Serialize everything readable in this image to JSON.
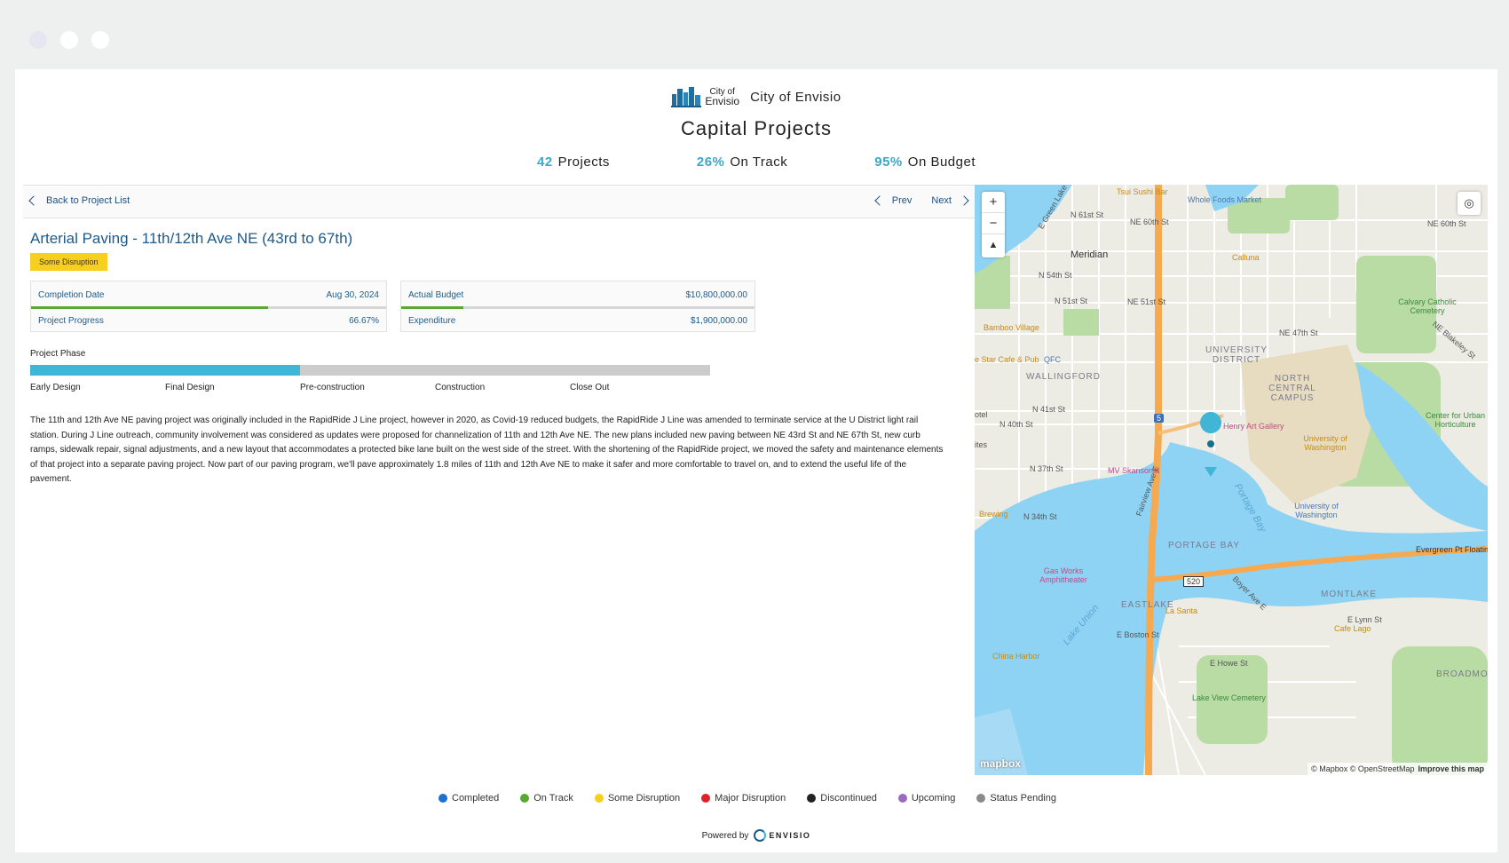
{
  "header": {
    "logo_line1": "City of",
    "logo_line2": "Envisio",
    "org_name": "City of Envisio",
    "title": "Capital Projects"
  },
  "stats": [
    {
      "value": "42",
      "label": "Projects"
    },
    {
      "value": "26%",
      "label": "On Track"
    },
    {
      "value": "95%",
      "label": "On Budget"
    }
  ],
  "nav": {
    "back_label": "Back to Project List",
    "prev_label": "Prev",
    "next_label": "Next"
  },
  "project": {
    "title": "Arterial Paving - 11th/12th Ave NE (43rd to 67th)",
    "status": "Some Disruption",
    "status_color": "#f7cf1f",
    "completion_date_label": "Completion Date",
    "completion_date": "Aug 30, 2024",
    "progress_label": "Project Progress",
    "progress": "66.67%",
    "progress_fraction": 0.6667,
    "actual_budget_label": "Actual Budget",
    "actual_budget": "$10,800,000.00",
    "expenditure_label": "Expenditure",
    "expenditure": "$1,900,000.00",
    "expenditure_fraction": 0.176,
    "phase_label": "Project Phase",
    "phases": [
      {
        "label": "Early Design",
        "done": true
      },
      {
        "label": "Final Design",
        "done": true
      },
      {
        "label": "Pre-construction",
        "done": false
      },
      {
        "label": "Construction",
        "done": false
      },
      {
        "label": "Close Out",
        "done": false
      }
    ],
    "description": "The 11th and 12th Ave NE paving project was originally included in the RapidRide J Line project, however in 2020, as Covid-19 reduced budgets, the RapidRide J Line was amended to terminate service at the U District light rail station. During J Line outreach, community involvement was considered as updates were proposed for channelization of 11th and 12th Ave NE. The new plans included new paving between NE 43rd St and NE 67th St, new curb ramps, sidewalk repair, signal adjustments, and a new layout that accommodates a protected bike lane built on the west side of the street. With the shortening of the RapidRide project, we moved the safety and maintenance elements of that project into a separate paving project. Now part of our paving program, we'll pave approximately 1.8 miles of 11th and 12th Ave NE to make it safer and more comfortable to travel on, and to extend the useful life of the pavement."
  },
  "map": {
    "zoom_in": "+",
    "zoom_out": "−",
    "compass": "▲",
    "locate_icon": "◎",
    "logo": "mapbox",
    "attribution": "© Mapbox © OpenStreetMap",
    "improve": "Improve this map",
    "labels": {
      "meridian": "Meridian",
      "university_district": "UNIVERSITY DISTRICT",
      "wallingford": "WALLINGFORD",
      "north_central_campus": "NORTH CENTRAL CAMPUS",
      "portage_bay": "PORTAGE BAY",
      "eastlake": "EASTLAKE",
      "montlake": "MONTLAKE",
      "broadmoor": "BROADMOOR",
      "tsui_sushi": "Tsui Sushi Bar",
      "whole_foods": "Whole Foods Market",
      "calluna": "Calluna",
      "calvary": "Calvary Catholic Cemetery",
      "bamboo_village": "Bamboo Village",
      "star_cafe": "e Star Cafe & Pub",
      "qfc": "QFC",
      "henry_art": "Henry Art Gallery",
      "uw": "University of Washington",
      "uw2": "University of Washington",
      "center_hort": "Center for Urban Horticulture",
      "mv_skansonia": "MV Skansonia",
      "gas_works": "Gas Works Amphitheater",
      "la_santa": "La Santa",
      "cafe_lago": "Cafe Lago",
      "china_harbor": "China Harbor",
      "lake_view": "Lake View Cemetery",
      "lake_union": "Lake Union",
      "portage_bay_water": "Portage Bay",
      "brewing": "Brewing",
      "otel": "otel",
      "ites": "ites",
      "n_61st": "N 61st St",
      "ne_60th": "NE 60th St",
      "ne_60th_e": "NE 60th St",
      "n_54th": "N 54th St",
      "n_51st": "N 51st St",
      "ne_51st": "NE 51st St",
      "ne_47th": "NE 47th St",
      "n_41st": "N 41st St",
      "n_40th": "N 40th St",
      "n_37th": "N 37th St",
      "n_34th": "N 34th St",
      "e_boston": "E Boston St",
      "e_howe": "E Howe St",
      "e_lynn": "E Lynn St",
      "evergreen": "Evergreen Pt Floatin",
      "boyer": "Boyer Ave E",
      "fairview": "Fairview Ave E",
      "ne_blakeley": "NE Blakeley St",
      "e_green_lake": "E Green Lake",
      "i5": "5",
      "sr520": "520"
    }
  },
  "legend": [
    {
      "label": "Completed",
      "color": "#1d6fd0"
    },
    {
      "label": "On Track",
      "color": "#58a832"
    },
    {
      "label": "Some Disruption",
      "color": "#f7cf1f"
    },
    {
      "label": "Major Disruption",
      "color": "#e0202a"
    },
    {
      "label": "Discontinued",
      "color": "#222222"
    },
    {
      "label": "Upcoming",
      "color": "#9a6bc0"
    },
    {
      "label": "Status Pending",
      "color": "#8a8a8a"
    }
  ],
  "footer": {
    "powered_by": "Powered by",
    "brand": "ENVISIO"
  }
}
